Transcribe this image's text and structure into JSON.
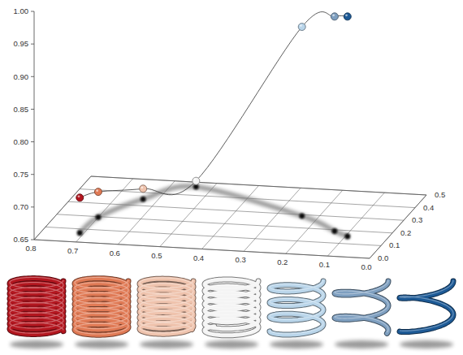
{
  "chart_data": {
    "type": "scatter3d",
    "x": [
      0.71,
      0.7,
      0.635,
      0.54,
      0.24,
      0.135,
      0.095
    ],
    "z": [
      0.07,
      0.195,
      0.35,
      0.465,
      0.29,
      0.19,
      0.156
    ],
    "values": [
      0.704,
      0.689,
      0.666,
      0.659,
      0.94,
      0.979,
      0.987
    ],
    "colors": [
      "#b3161f",
      "#e07a55",
      "#efc3ad",
      "#f4f4f4",
      "#b9d5ea",
      "#7e9fc0",
      "#1d5a96"
    ],
    "xlim": [
      0.8,
      0.0
    ],
    "xticks": [
      0.8,
      0.7,
      0.6,
      0.5,
      0.4,
      0.3,
      0.2,
      0.1,
      {
        "value": 0,
        "label": "0.0"
      }
    ],
    "zlim": [
      0,
      0.5
    ],
    "zticks": [
      {
        "value": 0,
        "label": "0.0"
      },
      0.1,
      0.2,
      0.3,
      0.4,
      0.5
    ],
    "ylim": [
      0.65,
      1.0
    ],
    "yticks": [
      0.65,
      {
        "value": 0.7,
        "label": "0.70"
      },
      0.75,
      {
        "value": 0.8,
        "label": "0.80"
      },
      0.85,
      {
        "value": 0.9,
        "label": "0.90"
      },
      0.95,
      {
        "value": 1.0,
        "label": "1.00"
      }
    ],
    "grid": true
  }
}
